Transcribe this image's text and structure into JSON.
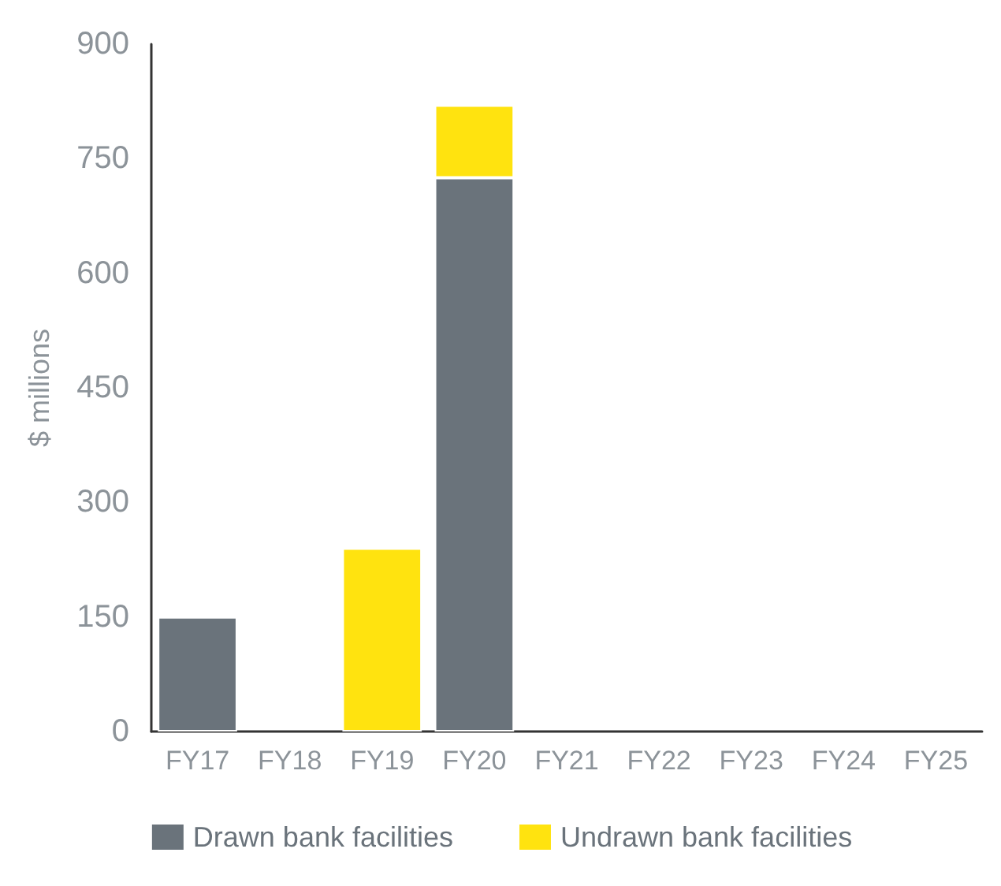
{
  "chart_data": {
    "type": "bar",
    "stacked": true,
    "ylabel": "$ millions",
    "categories": [
      "FY17",
      "FY18",
      "FY19",
      "FY20",
      "FY21",
      "FY22",
      "FY23",
      "FY24",
      "FY25"
    ],
    "series": [
      {
        "name": "Drawn bank facilities",
        "color": "#6a737b",
        "values": [
          150,
          null,
          null,
          725,
          null,
          null,
          null,
          null,
          null
        ]
      },
      {
        "name": "Undrawn bank facilities",
        "color": "#ffe30f",
        "values": [
          null,
          null,
          240,
          95,
          null,
          null,
          null,
          null,
          null
        ]
      }
    ],
    "ylim": [
      0,
      900
    ],
    "yticks": [
      0,
      150,
      300,
      450,
      600,
      750,
      900
    ],
    "grid": false,
    "legend": "bottom"
  }
}
